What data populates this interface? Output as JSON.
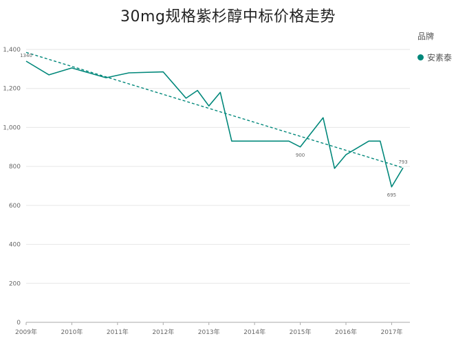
{
  "chart_data": {
    "type": "line",
    "title": "30mg规格紫杉醇中标价格走势",
    "legend_title": "品牌",
    "legend_position": "top-right",
    "series": [
      {
        "name": "安素泰",
        "color": "#00877a",
        "points": [
          {
            "x": 2009.0,
            "y": 1340
          },
          {
            "x": 2009.5,
            "y": 1270
          },
          {
            "x": 2010.0,
            "y": 1305
          },
          {
            "x": 2010.75,
            "y": 1255
          },
          {
            "x": 2011.25,
            "y": 1280
          },
          {
            "x": 2012.0,
            "y": 1285
          },
          {
            "x": 2012.5,
            "y": 1150
          },
          {
            "x": 2012.75,
            "y": 1190
          },
          {
            "x": 2013.0,
            "y": 1110
          },
          {
            "x": 2013.25,
            "y": 1180
          },
          {
            "x": 2013.5,
            "y": 930
          },
          {
            "x": 2014.75,
            "y": 930
          },
          {
            "x": 2015.0,
            "y": 900
          },
          {
            "x": 2015.5,
            "y": 1050
          },
          {
            "x": 2015.75,
            "y": 790
          },
          {
            "x": 2016.0,
            "y": 860
          },
          {
            "x": 2016.5,
            "y": 930
          },
          {
            "x": 2016.75,
            "y": 930
          },
          {
            "x": 2017.0,
            "y": 695
          },
          {
            "x": 2017.25,
            "y": 793
          }
        ]
      }
    ],
    "trendline": {
      "style": "dashed",
      "from": {
        "x": 2009.0,
        "y": 1385
      },
      "to": {
        "x": 2017.25,
        "y": 793
      }
    },
    "data_labels": [
      {
        "x": 2009.0,
        "y": 1340,
        "text": "1340",
        "position": "above"
      },
      {
        "x": 2015.0,
        "y": 900,
        "text": "900",
        "position": "below"
      },
      {
        "x": 2017.0,
        "y": 695,
        "text": "695",
        "position": "below"
      },
      {
        "x": 2017.25,
        "y": 793,
        "text": "793",
        "position": "above"
      }
    ],
    "xlim": [
      2009.0,
      2017.4
    ],
    "ylim": [
      0,
      1400
    ],
    "yticks": [
      0,
      200,
      400,
      600,
      800,
      1000,
      1200,
      1400
    ],
    "ytick_labels": [
      "0",
      "200",
      "400",
      "600",
      "800",
      "1,000",
      "1,200",
      "1,400"
    ],
    "xticks": [
      2009,
      2010,
      2011,
      2012,
      2013,
      2014,
      2015,
      2016,
      2017
    ],
    "xtick_labels": [
      "2009年",
      "2010年",
      "2011年",
      "2012年",
      "2013年",
      "2014年",
      "2015年",
      "2016年",
      "2017年"
    ],
    "grid": "horizontal",
    "xlabel": "",
    "ylabel": ""
  }
}
